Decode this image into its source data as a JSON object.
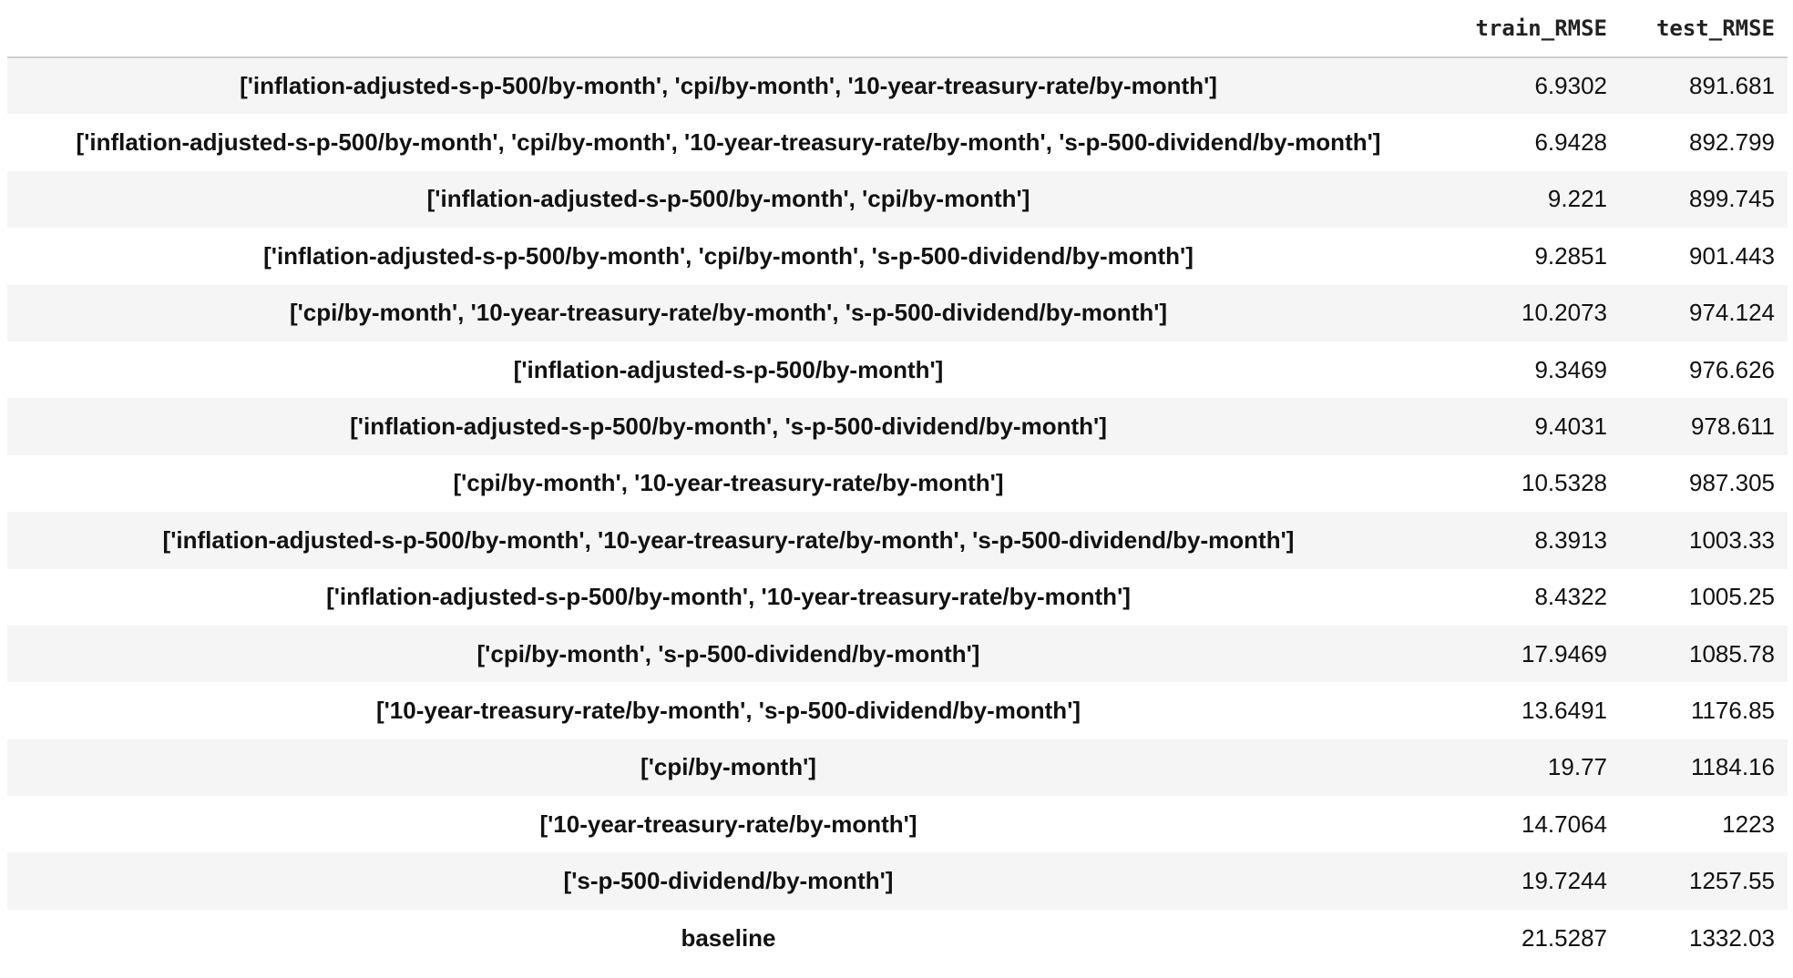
{
  "table": {
    "columns": [
      "",
      "train_RMSE",
      "test_RMSE"
    ],
    "rows": [
      {
        "index": "['inflation-adjusted-s-p-500/by-month', 'cpi/by-month', '10-year-treasury-rate/by-month']",
        "train_RMSE": "6.9302",
        "test_RMSE": "891.681"
      },
      {
        "index": "['inflation-adjusted-s-p-500/by-month', 'cpi/by-month', '10-year-treasury-rate/by-month', 's-p-500-dividend/by-month']",
        "train_RMSE": "6.9428",
        "test_RMSE": "892.799"
      },
      {
        "index": "['inflation-adjusted-s-p-500/by-month', 'cpi/by-month']",
        "train_RMSE": "9.221",
        "test_RMSE": "899.745"
      },
      {
        "index": "['inflation-adjusted-s-p-500/by-month', 'cpi/by-month', 's-p-500-dividend/by-month']",
        "train_RMSE": "9.2851",
        "test_RMSE": "901.443"
      },
      {
        "index": "['cpi/by-month', '10-year-treasury-rate/by-month', 's-p-500-dividend/by-month']",
        "train_RMSE": "10.2073",
        "test_RMSE": "974.124"
      },
      {
        "index": "['inflation-adjusted-s-p-500/by-month']",
        "train_RMSE": "9.3469",
        "test_RMSE": "976.626"
      },
      {
        "index": "['inflation-adjusted-s-p-500/by-month', 's-p-500-dividend/by-month']",
        "train_RMSE": "9.4031",
        "test_RMSE": "978.611"
      },
      {
        "index": "['cpi/by-month', '10-year-treasury-rate/by-month']",
        "train_RMSE": "10.5328",
        "test_RMSE": "987.305"
      },
      {
        "index": "['inflation-adjusted-s-p-500/by-month', '10-year-treasury-rate/by-month', 's-p-500-dividend/by-month']",
        "train_RMSE": "8.3913",
        "test_RMSE": "1003.33"
      },
      {
        "index": "['inflation-adjusted-s-p-500/by-month', '10-year-treasury-rate/by-month']",
        "train_RMSE": "8.4322",
        "test_RMSE": "1005.25"
      },
      {
        "index": "['cpi/by-month', 's-p-500-dividend/by-month']",
        "train_RMSE": "17.9469",
        "test_RMSE": "1085.78"
      },
      {
        "index": "['10-year-treasury-rate/by-month', 's-p-500-dividend/by-month']",
        "train_RMSE": "13.6491",
        "test_RMSE": "1176.85"
      },
      {
        "index": "['cpi/by-month']",
        "train_RMSE": "19.77",
        "test_RMSE": "1184.16"
      },
      {
        "index": "['10-year-treasury-rate/by-month']",
        "train_RMSE": "14.7064",
        "test_RMSE": "1223"
      },
      {
        "index": "['s-p-500-dividend/by-month']",
        "train_RMSE": "19.7244",
        "test_RMSE": "1257.55"
      },
      {
        "index": "baseline",
        "train_RMSE": "21.5287",
        "test_RMSE": "1332.03"
      }
    ]
  },
  "colors": {
    "stripe": "#f5f5f5",
    "header_rule": "#cfcfcf",
    "text": "#111111"
  }
}
